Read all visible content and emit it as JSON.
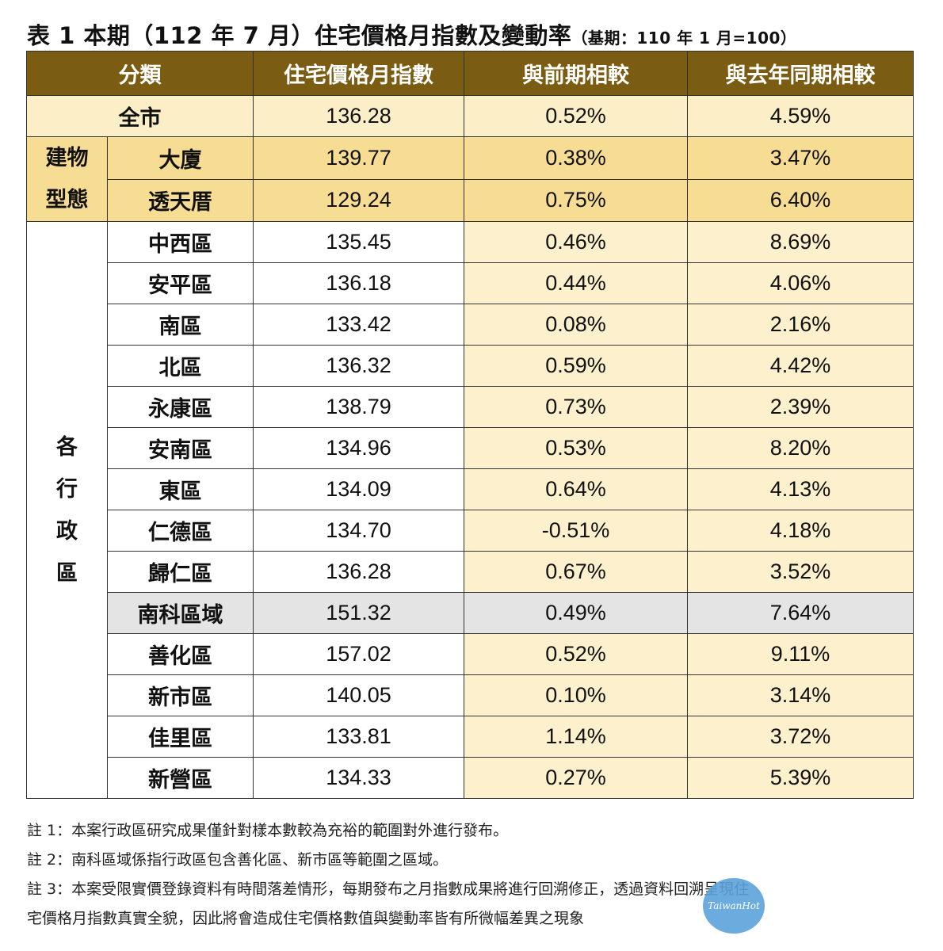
{
  "title": {
    "main": "表 1 本期（112 年 7 月）住宅價格月指數及變動率",
    "base": "（基期：110 年 1 月=100）"
  },
  "headers": [
    "分類",
    "住宅價格月指數",
    "與前期相較",
    "與去年同期相較"
  ],
  "city_row": {
    "label": "全市",
    "index": "136.28",
    "mom": "0.52%",
    "yoy": "4.59%"
  },
  "building_type": {
    "group_label": "建物\n型態",
    "rows": [
      {
        "label": "大廈",
        "index": "139.77",
        "mom": "0.38%",
        "yoy": "3.47%"
      },
      {
        "label": "透天厝",
        "index": "129.24",
        "mom": "0.75%",
        "yoy": "6.40%"
      }
    ]
  },
  "districts": {
    "group_label": "各\n行\n政\n區",
    "rows": [
      {
        "label": "中西區",
        "index": "135.45",
        "mom": "0.46%",
        "yoy": "8.69%"
      },
      {
        "label": "安平區",
        "index": "136.18",
        "mom": "0.44%",
        "yoy": "4.06%"
      },
      {
        "label": "南區",
        "index": "133.42",
        "mom": "0.08%",
        "yoy": "2.16%"
      },
      {
        "label": "北區",
        "index": "136.32",
        "mom": "0.59%",
        "yoy": "4.42%"
      },
      {
        "label": "永康區",
        "index": "138.79",
        "mom": "0.73%",
        "yoy": "2.39%"
      },
      {
        "label": "安南區",
        "index": "134.96",
        "mom": "0.53%",
        "yoy": "8.20%"
      },
      {
        "label": "東區",
        "index": "134.09",
        "mom": "0.64%",
        "yoy": "4.13%"
      },
      {
        "label": "仁德區",
        "index": "134.70",
        "mom": "-0.51%",
        "yoy": "4.18%"
      },
      {
        "label": "歸仁區",
        "index": "136.28",
        "mom": "0.67%",
        "yoy": "3.52%"
      },
      {
        "label": "南科區域",
        "index": "151.32",
        "mom": "0.49%",
        "yoy": "7.64%"
      },
      {
        "label": "善化區",
        "index": "157.02",
        "mom": "0.52%",
        "yoy": "9.11%"
      },
      {
        "label": "新市區",
        "index": "140.05",
        "mom": "0.10%",
        "yoy": "3.14%"
      },
      {
        "label": "佳里區",
        "index": "133.81",
        "mom": "1.14%",
        "yoy": "3.72%"
      },
      {
        "label": "新營區",
        "index": "134.33",
        "mom": "0.27%",
        "yoy": "5.39%"
      }
    ]
  },
  "notes": [
    "註 1：本案行政區研究成果僅針對樣本數較為充裕的範圍對外進行發布。",
    "註 2：南科區域係指行政區包含善化區、新市區等範圍之區域。",
    "註 3：本案受限實價登錄資料有時間落差情形，每期發布之月指數成果將進行回溯修正，透過資料回溯呈現住",
    "宅價格月指數真實全貌，因此將會造成住宅價格數值與變動率皆有所微幅差異之現象"
  ],
  "watermark": "TaiwanHot"
}
